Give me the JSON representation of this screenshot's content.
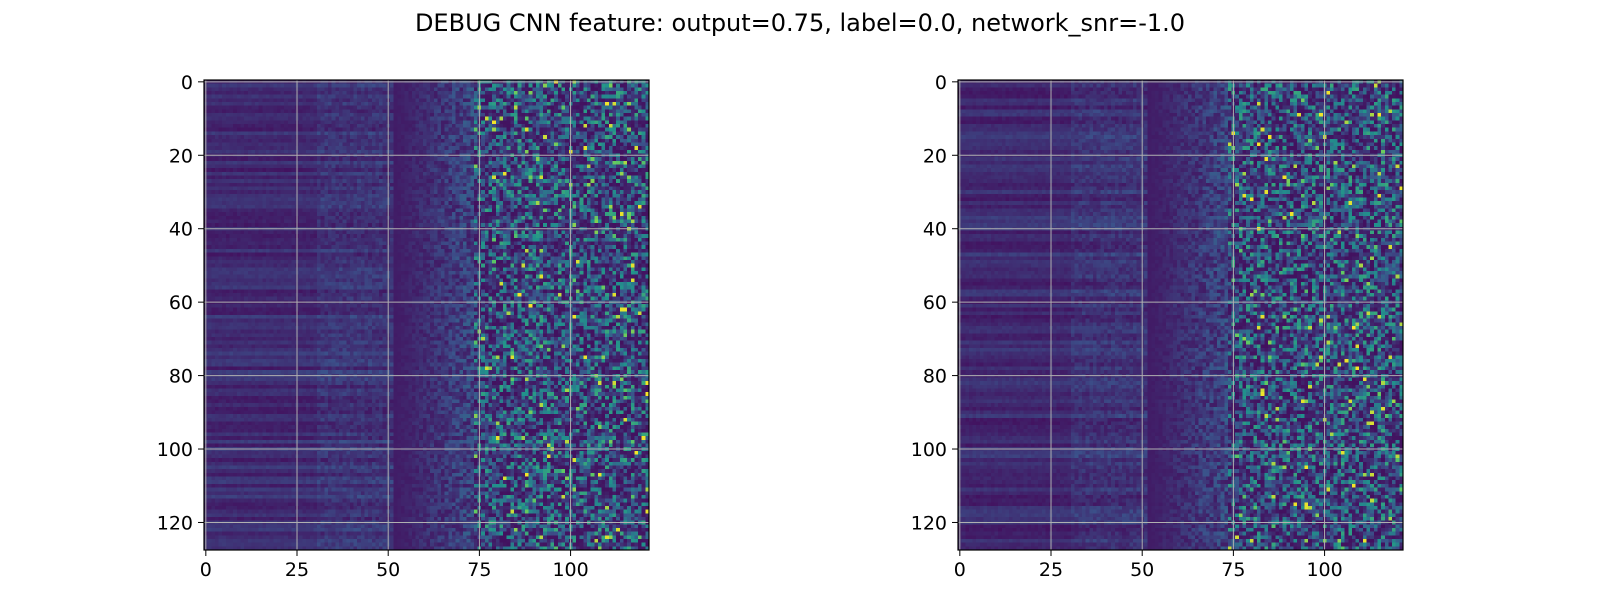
{
  "figure": {
    "title": "DEBUG CNN feature: output=0.75, label=0.0, network_snr=-1.0"
  },
  "chart_data": [
    {
      "type": "heatmap",
      "title": "",
      "xlabel": "",
      "ylabel": "",
      "rows": 128,
      "cols": 122,
      "xlim": [
        -0.5,
        121.5
      ],
      "ylim": [
        127.5,
        -0.5
      ],
      "xticks": [
        0,
        25,
        50,
        75,
        100
      ],
      "yticks": [
        0,
        20,
        40,
        60,
        80,
        100,
        120
      ],
      "grid": true,
      "colormap": "viridis",
      "seed": 17,
      "colormap_stops": [
        "#440154",
        "#3b528b",
        "#21918c",
        "#5ec962",
        "#fde725"
      ]
    },
    {
      "type": "heatmap",
      "title": "",
      "xlabel": "",
      "ylabel": "",
      "rows": 128,
      "cols": 122,
      "xlim": [
        -0.5,
        121.5
      ],
      "ylim": [
        127.5,
        -0.5
      ],
      "xticks": [
        0,
        25,
        50,
        75,
        100
      ],
      "yticks": [
        0,
        20,
        40,
        60,
        80,
        100,
        120
      ],
      "grid": true,
      "colormap": "viridis",
      "seed": 91,
      "colormap_stops": [
        "#440154",
        "#3b528b",
        "#21918c",
        "#5ec962",
        "#fde725"
      ]
    }
  ]
}
